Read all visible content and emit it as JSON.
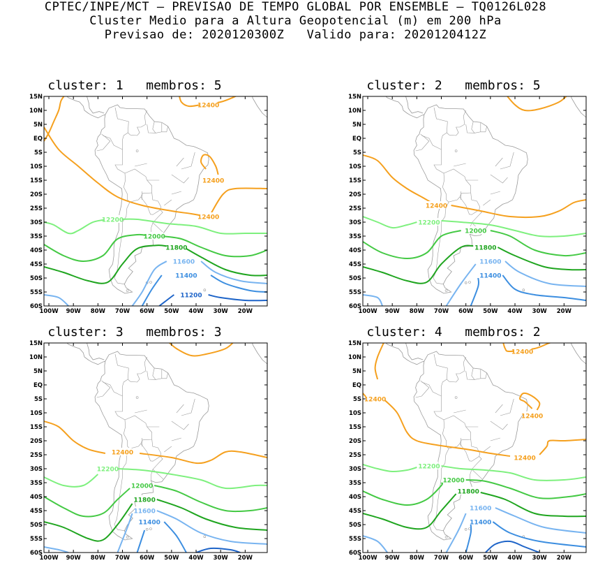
{
  "header": {
    "line1": "CPTEC/INPE/MCT – PREVISAO DE TEMPO GLOBAL POR ENSEMBLE – TQ0126L028",
    "line2": "Cluster Medio para a Altura Geopotencial (m) em 200 hPa",
    "line3": "Previsao de: 2020120300Z   Valido para: 2020120412Z"
  },
  "axes": {
    "lat_labels": [
      "15N",
      "10N",
      "5N",
      "EQ",
      "5S",
      "10S",
      "15S",
      "20S",
      "25S",
      "30S",
      "35S",
      "40S",
      "45S",
      "50S",
      "55S",
      "60S"
    ],
    "lon_labels": [
      "100W",
      "90W",
      "80W",
      "70W",
      "60W",
      "50W",
      "40W",
      "30W",
      "20W"
    ]
  },
  "colors": {
    "c12400": "#f5a01e",
    "c12200": "#7ef07e",
    "c12000": "#44c944",
    "c11800": "#1fa51f",
    "c11600": "#78b4f0",
    "c11400": "#3c8ee0",
    "c11200": "#1e64c8",
    "coast": "#9a9a9a"
  },
  "panels": [
    {
      "title": "cluster: 1   membros: 5",
      "labels": [
        {
          "text": "12400",
          "lon": -35,
          "lat": 12,
          "color": "c12400"
        },
        {
          "text": "12400",
          "lon": -33,
          "lat": -15,
          "color": "c12400"
        },
        {
          "text": "12400",
          "lon": -35,
          "lat": -28,
          "color": "c12400"
        },
        {
          "text": "12200",
          "lon": -74,
          "lat": -29,
          "color": "c12200"
        },
        {
          "text": "12000",
          "lon": -57,
          "lat": -35,
          "color": "c12000"
        },
        {
          "text": "11800",
          "lon": -48,
          "lat": -39,
          "color": "c11800"
        },
        {
          "text": "11600",
          "lon": -45,
          "lat": -44,
          "color": "c11600"
        },
        {
          "text": "11400",
          "lon": -44,
          "lat": -49,
          "color": "c11400"
        },
        {
          "text": "11200",
          "lon": -42,
          "lat": -56,
          "color": "c11200"
        }
      ]
    },
    {
      "title": "cluster: 2   membros: 5",
      "labels": [
        {
          "text": "12400",
          "lon": -72,
          "lat": -24,
          "color": "c12400"
        },
        {
          "text": "12200",
          "lon": -75,
          "lat": -30,
          "color": "c12200"
        },
        {
          "text": "12000",
          "lon": -56,
          "lat": -33,
          "color": "c12000"
        },
        {
          "text": "11800",
          "lon": -52,
          "lat": -39,
          "color": "c11800"
        },
        {
          "text": "11600",
          "lon": -50,
          "lat": -44,
          "color": "c11600"
        },
        {
          "text": "11400",
          "lon": -50,
          "lat": -49,
          "color": "c11400"
        }
      ]
    },
    {
      "title": "cluster: 3   membros: 3",
      "labels": [
        {
          "text": "12400",
          "lon": -70,
          "lat": -24,
          "color": "c12400"
        },
        {
          "text": "12200",
          "lon": -76,
          "lat": -30,
          "color": "c12200"
        },
        {
          "text": "12000",
          "lon": -62,
          "lat": -36,
          "color": "c12000"
        },
        {
          "text": "11800",
          "lon": -61,
          "lat": -41,
          "color": "c11800"
        },
        {
          "text": "11600",
          "lon": -61,
          "lat": -45,
          "color": "c11600"
        },
        {
          "text": "11400",
          "lon": -59,
          "lat": -49,
          "color": "c11400"
        }
      ]
    },
    {
      "title": "cluster: 4   membros: 2",
      "labels": [
        {
          "text": "12400",
          "lon": -37,
          "lat": 12,
          "color": "c12400"
        },
        {
          "text": "12400",
          "lon": -97,
          "lat": -5,
          "color": "c12400"
        },
        {
          "text": "12400",
          "lon": -33,
          "lat": -11,
          "color": "c12400"
        },
        {
          "text": "12400",
          "lon": -36,
          "lat": -26,
          "color": "c12400"
        },
        {
          "text": "12200",
          "lon": -75,
          "lat": -29,
          "color": "c12200"
        },
        {
          "text": "12000",
          "lon": -65,
          "lat": -34,
          "color": "c12000"
        },
        {
          "text": "11800",
          "lon": -59,
          "lat": -38,
          "color": "c11800"
        },
        {
          "text": "11600",
          "lon": -54,
          "lat": -44,
          "color": "c11600"
        },
        {
          "text": "11400",
          "lon": -54,
          "lat": -49,
          "color": "c11400"
        }
      ]
    }
  ]
}
